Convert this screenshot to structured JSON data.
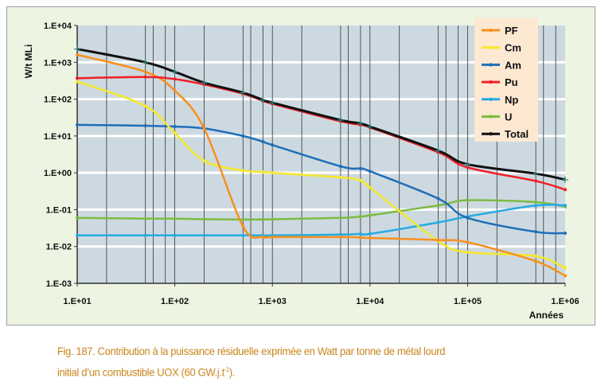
{
  "chart_data": {
    "type": "line",
    "xscale": "log",
    "yscale": "log",
    "xlim": [
      10,
      1000000
    ],
    "ylim": [
      0.001,
      10000
    ],
    "xlabel": "Années",
    "ylabel": "W/t MLi",
    "xticks": [
      "1.E+01",
      "1.E+02",
      "1.E+03",
      "1.E+04",
      "1.E+05",
      "1.E+06"
    ],
    "yticks": [
      "1.E-03",
      "1.E-02",
      "1.E-01",
      "1.E+00",
      "1.E+01",
      "1.E+02",
      "1.E+03",
      "1.E+04"
    ],
    "grid": true,
    "legend_position": "top-right",
    "x": [
      10,
      50,
      100,
      200,
      500,
      800,
      1000,
      5000,
      8000,
      10000,
      50000,
      100000,
      500000,
      1000000
    ],
    "series": [
      {
        "name": "PF",
        "color": "#f7901e",
        "values": [
          1600,
          550,
          170,
          16,
          0.035,
          0.018,
          0.018,
          0.018,
          0.0175,
          0.017,
          0.015,
          0.013,
          0.004,
          0.0016
        ]
      },
      {
        "name": "Cm",
        "color": "#f5e92a",
        "values": [
          300,
          65,
          12,
          2.1,
          1.15,
          1.05,
          1.0,
          0.75,
          0.62,
          0.4,
          0.014,
          0.007,
          0.0055,
          0.0026
        ]
      },
      {
        "name": "Am",
        "color": "#1f6fb8",
        "values": [
          20,
          19,
          18,
          16,
          10,
          7,
          5.7,
          1.5,
          1.3,
          1.1,
          0.2,
          0.06,
          0.025,
          0.023
        ]
      },
      {
        "name": "Pu",
        "color": "#ee2027",
        "values": [
          370,
          400,
          350,
          250,
          140,
          90,
          75,
          25,
          20,
          17,
          3.6,
          1.4,
          0.6,
          0.35
        ]
      },
      {
        "name": "Np",
        "color": "#27aae1",
        "values": [
          0.02,
          0.02,
          0.02,
          0.02,
          0.02,
          0.02,
          0.02,
          0.021,
          0.022,
          0.022,
          0.045,
          0.065,
          0.13,
          0.13
        ]
      },
      {
        "name": "U",
        "color": "#7dbb42",
        "values": [
          0.06,
          0.057,
          0.057,
          0.055,
          0.054,
          0.054,
          0.055,
          0.06,
          0.065,
          0.07,
          0.13,
          0.18,
          0.16,
          0.12
        ]
      },
      {
        "name": "Total",
        "color": "#111111",
        "values": [
          2300,
          1000,
          550,
          280,
          150,
          95,
          80,
          27,
          22,
          18,
          4,
          1.7,
          0.95,
          0.65
        ]
      }
    ]
  },
  "caption": {
    "line1": "Fig. 187. Contribution à la puissance résiduelle exprimée en Watt par tonne de métal lourd",
    "line2": "initial d’un combustible UOX (60 GW.j.t",
    "sup": "-1",
    "end": ")."
  }
}
